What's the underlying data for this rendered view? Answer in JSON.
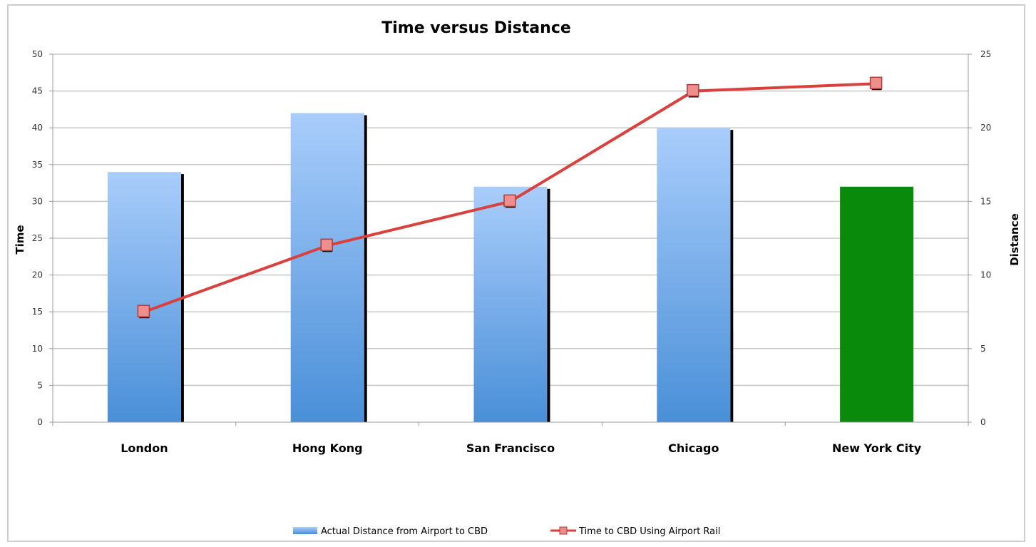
{
  "chart_data": {
    "type": "bar",
    "title": "Time versus Distance",
    "categories": [
      "London",
      "Hong Kong",
      "San Francisco",
      "Chicago",
      "New York City"
    ],
    "y_left": {
      "label": "Time",
      "ylim": [
        0,
        50
      ],
      "ticks": [
        "0",
        "5",
        "10",
        "15",
        "20",
        "25",
        "30",
        "35",
        "40",
        "45",
        "50"
      ]
    },
    "y_right": {
      "label": "Distance",
      "ylim": [
        0,
        25
      ],
      "ticks": [
        "0",
        "5",
        "10",
        "15",
        "20",
        "25"
      ]
    },
    "series": [
      {
        "name": "Actual Distance from Airport to CBD",
        "kind": "bar",
        "axis": "right",
        "values": [
          17,
          21,
          16,
          20,
          16
        ],
        "colors": [
          "#5b9bd5",
          "#5b9bd5",
          "#5b9bd5",
          "#5b9bd5",
          "#0a8a0a"
        ]
      },
      {
        "name": "Time to CBD Using Airport Rail",
        "kind": "line",
        "axis": "left",
        "values": [
          15,
          24,
          30,
          45,
          46
        ],
        "color": "#d9413e",
        "marker": "square"
      }
    ],
    "grid": true,
    "legend_position": "bottom"
  }
}
